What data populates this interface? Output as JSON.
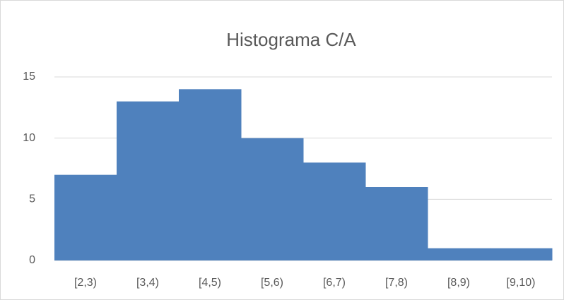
{
  "chart_data": {
    "type": "bar",
    "title": "Histograma C/A",
    "categories": [
      "[2,3)",
      "[3,4)",
      "[4,5)",
      "[5,6)",
      "[6,7)",
      "[7,8)",
      "[8,9)",
      "[9,10)"
    ],
    "values": [
      7,
      13,
      14,
      10,
      8,
      6,
      1,
      1
    ],
    "color": "#4f81bd",
    "ylim": [
      0,
      15
    ],
    "yticks": [
      0,
      5,
      10,
      15
    ],
    "grid": true
  }
}
